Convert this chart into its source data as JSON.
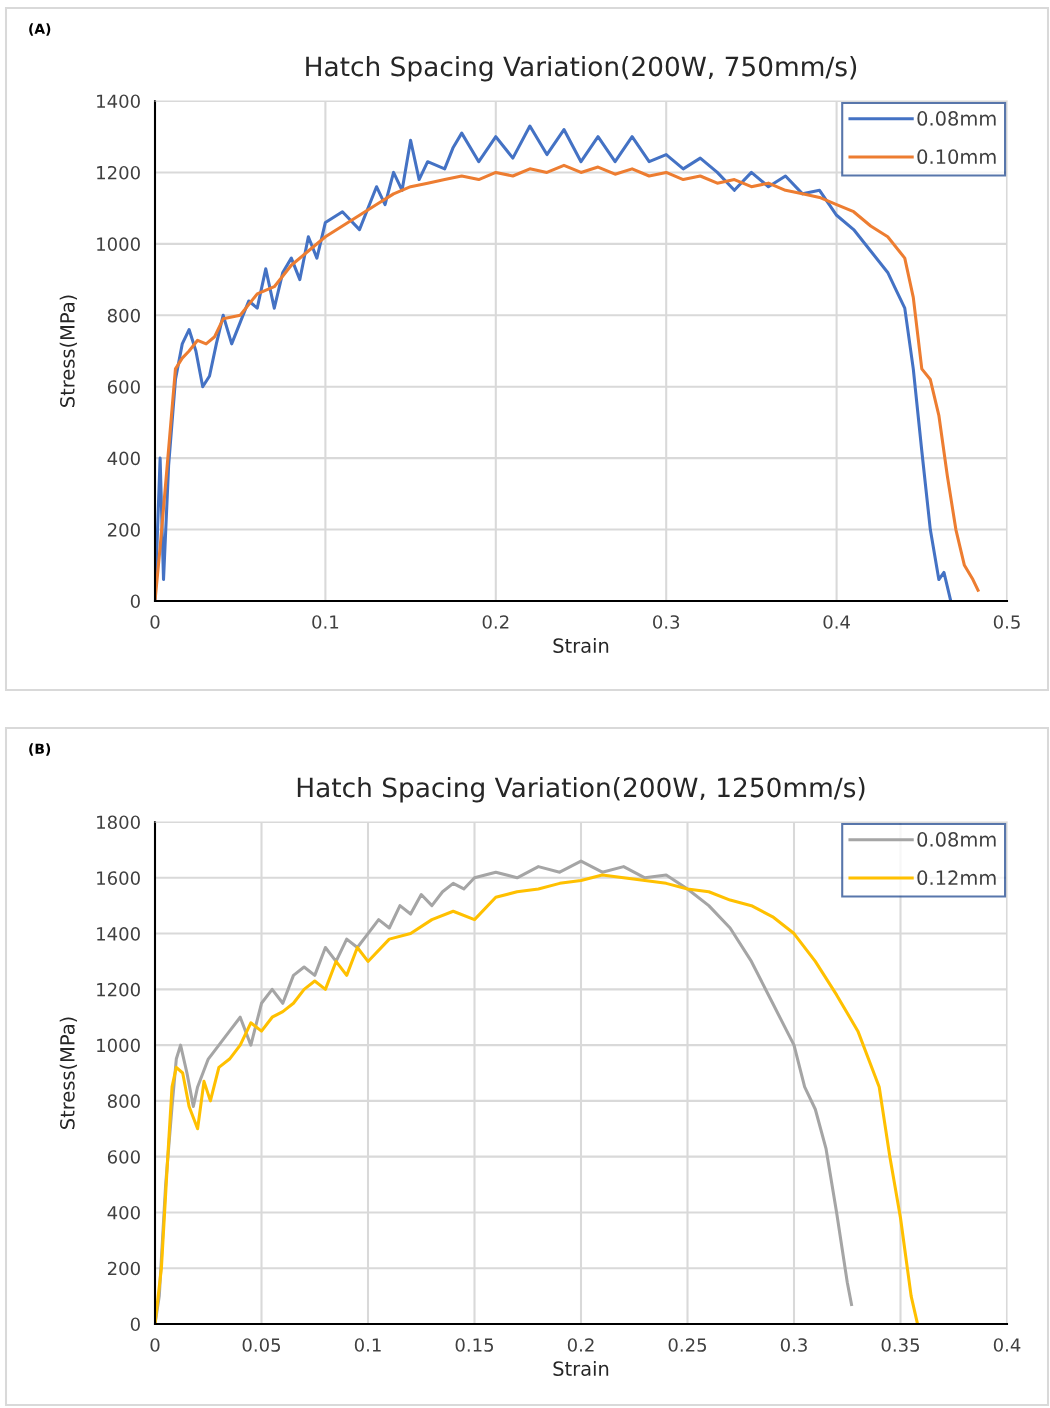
{
  "chart_data": [
    {
      "type": "line",
      "title": "Hatch Spacing Variation(200W, 750mm/s)",
      "xlabel": "Strain",
      "ylabel": "Stress(MPa)",
      "annotations": [
        "(A)"
      ],
      "xlim": [
        0,
        0.5
      ],
      "xticks": [
        0,
        0.1,
        0.2,
        0.3,
        0.4,
        0.5
      ],
      "ylim": [
        0,
        1400
      ],
      "yticks": [
        0,
        200,
        400,
        600,
        800,
        1000,
        1200,
        1400
      ],
      "grid": true,
      "legend": "top right",
      "marker": "none",
      "line_style": "solid",
      "series": [
        {
          "name": "0.08mm",
          "color": "#4472c4",
          "x": [
            0,
            0.003,
            0.005,
            0.008,
            0.012,
            0.016,
            0.02,
            0.024,
            0.028,
            0.032,
            0.036,
            0.04,
            0.045,
            0.05,
            0.055,
            0.06,
            0.065,
            0.07,
            0.075,
            0.08,
            0.085,
            0.09,
            0.095,
            0.1,
            0.11,
            0.12,
            0.13,
            0.135,
            0.14,
            0.145,
            0.15,
            0.155,
            0.16,
            0.17,
            0.175,
            0.18,
            0.19,
            0.2,
            0.21,
            0.22,
            0.23,
            0.24,
            0.25,
            0.26,
            0.27,
            0.28,
            0.29,
            0.3,
            0.31,
            0.32,
            0.33,
            0.34,
            0.35,
            0.36,
            0.37,
            0.38,
            0.39,
            0.4,
            0.41,
            0.42,
            0.43,
            0.435,
            0.44,
            0.445,
            0.45,
            0.455,
            0.46,
            0.463,
            0.467
          ],
          "values": [
            0,
            400,
            60,
            380,
            620,
            720,
            760,
            700,
            600,
            630,
            720,
            800,
            720,
            780,
            840,
            820,
            930,
            820,
            920,
            960,
            900,
            1020,
            960,
            1060,
            1090,
            1040,
            1160,
            1110,
            1200,
            1150,
            1290,
            1180,
            1230,
            1210,
            1270,
            1310,
            1230,
            1300,
            1240,
            1330,
            1250,
            1320,
            1230,
            1300,
            1230,
            1300,
            1230,
            1250,
            1210,
            1240,
            1200,
            1150,
            1200,
            1160,
            1190,
            1140,
            1150,
            1080,
            1040,
            980,
            920,
            870,
            820,
            650,
            420,
            200,
            60,
            80,
            0
          ]
        },
        {
          "name": "0.10mm",
          "color": "#ed7d31",
          "x": [
            0,
            0.003,
            0.007,
            0.012,
            0.016,
            0.02,
            0.025,
            0.03,
            0.035,
            0.04,
            0.05,
            0.06,
            0.07,
            0.08,
            0.09,
            0.1,
            0.11,
            0.12,
            0.13,
            0.14,
            0.15,
            0.16,
            0.17,
            0.18,
            0.19,
            0.2,
            0.21,
            0.22,
            0.23,
            0.24,
            0.25,
            0.26,
            0.27,
            0.28,
            0.29,
            0.3,
            0.31,
            0.32,
            0.33,
            0.34,
            0.35,
            0.36,
            0.37,
            0.38,
            0.39,
            0.4,
            0.41,
            0.42,
            0.43,
            0.44,
            0.445,
            0.45,
            0.455,
            0.46,
            0.465,
            0.47,
            0.475,
            0.48,
            0.483
          ],
          "values": [
            0,
            150,
            370,
            650,
            680,
            700,
            730,
            720,
            740,
            790,
            800,
            860,
            880,
            940,
            980,
            1020,
            1050,
            1080,
            1110,
            1140,
            1160,
            1170,
            1180,
            1190,
            1180,
            1200,
            1190,
            1210,
            1200,
            1220,
            1200,
            1215,
            1195,
            1210,
            1190,
            1200,
            1180,
            1190,
            1170,
            1180,
            1160,
            1170,
            1150,
            1140,
            1130,
            1110,
            1090,
            1050,
            1020,
            960,
            850,
            650,
            620,
            520,
            350,
            200,
            100,
            60,
            30
          ]
        }
      ]
    },
    {
      "type": "line",
      "title": "Hatch Spacing Variation(200W, 1250mm/s)",
      "xlabel": "Strain",
      "ylabel": "Stress(MPa)",
      "annotations": [
        "(B)"
      ],
      "xlim": [
        0,
        0.4
      ],
      "xticks": [
        0,
        0.05,
        0.1,
        0.15,
        0.2,
        0.25,
        0.3,
        0.35,
        0.4
      ],
      "ylim": [
        0,
        1800
      ],
      "yticks": [
        0,
        200,
        400,
        600,
        800,
        1000,
        1200,
        1400,
        1600,
        1800
      ],
      "grid": true,
      "legend": "top right",
      "marker": "none",
      "line_style": "solid",
      "series": [
        {
          "name": "0.08mm",
          "color": "#a5a5a5",
          "x": [
            0,
            0.002,
            0.005,
            0.008,
            0.01,
            0.012,
            0.015,
            0.018,
            0.02,
            0.025,
            0.03,
            0.035,
            0.04,
            0.045,
            0.05,
            0.055,
            0.06,
            0.065,
            0.07,
            0.075,
            0.08,
            0.085,
            0.09,
            0.095,
            0.1,
            0.105,
            0.11,
            0.115,
            0.12,
            0.125,
            0.13,
            0.135,
            0.14,
            0.145,
            0.15,
            0.16,
            0.17,
            0.18,
            0.19,
            0.2,
            0.21,
            0.22,
            0.23,
            0.24,
            0.25,
            0.26,
            0.27,
            0.28,
            0.29,
            0.3,
            0.305,
            0.31,
            0.315,
            0.32,
            0.325,
            0.327
          ],
          "values": [
            0,
            100,
            500,
            780,
            950,
            1000,
            900,
            780,
            850,
            950,
            1000,
            1050,
            1100,
            1000,
            1150,
            1200,
            1150,
            1250,
            1280,
            1250,
            1350,
            1300,
            1380,
            1350,
            1400,
            1450,
            1420,
            1500,
            1470,
            1540,
            1500,
            1550,
            1580,
            1560,
            1600,
            1620,
            1600,
            1640,
            1620,
            1660,
            1620,
            1640,
            1600,
            1610,
            1560,
            1500,
            1420,
            1300,
            1150,
            1000,
            850,
            770,
            630,
            400,
            150,
            70
          ]
        },
        {
          "name": "0.12mm",
          "color": "#ffc000",
          "x": [
            0,
            0.003,
            0.006,
            0.008,
            0.01,
            0.013,
            0.016,
            0.02,
            0.023,
            0.026,
            0.03,
            0.035,
            0.04,
            0.045,
            0.05,
            0.055,
            0.06,
            0.065,
            0.07,
            0.075,
            0.08,
            0.085,
            0.09,
            0.095,
            0.1,
            0.11,
            0.12,
            0.13,
            0.14,
            0.15,
            0.16,
            0.17,
            0.18,
            0.19,
            0.2,
            0.21,
            0.22,
            0.23,
            0.24,
            0.25,
            0.26,
            0.27,
            0.28,
            0.29,
            0.3,
            0.31,
            0.32,
            0.33,
            0.34,
            0.345,
            0.35,
            0.355,
            0.358
          ],
          "values": [
            0,
            200,
            600,
            850,
            920,
            900,
            780,
            700,
            870,
            800,
            920,
            950,
            1000,
            1080,
            1050,
            1100,
            1120,
            1150,
            1200,
            1230,
            1200,
            1300,
            1250,
            1350,
            1300,
            1380,
            1400,
            1450,
            1480,
            1450,
            1530,
            1550,
            1560,
            1580,
            1590,
            1610,
            1600,
            1590,
            1580,
            1560,
            1550,
            1520,
            1500,
            1460,
            1400,
            1300,
            1180,
            1050,
            850,
            600,
            380,
            100,
            0
          ]
        }
      ]
    }
  ]
}
